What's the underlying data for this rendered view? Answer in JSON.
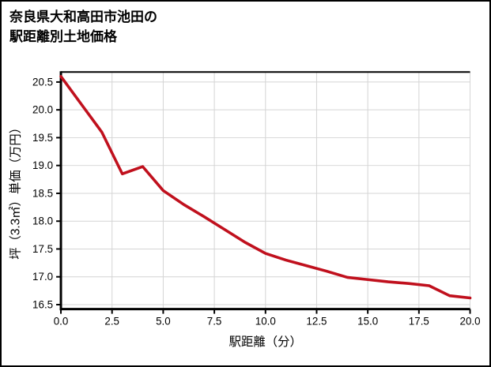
{
  "window": {
    "background": "#ffffff",
    "border_color": "#000000"
  },
  "title": {
    "line1": "奈良県大和高田市池田の",
    "line2": "駅距離別土地価格"
  },
  "chart_data": {
    "type": "line",
    "title": "奈良県大和高田市池田の駅距離別土地価格",
    "xlabel": "駅距離（分）",
    "ylabel": "坪（3.3㎡）単価（万円）",
    "series": [
      {
        "name": "坪単価",
        "color": "#c0101d",
        "x": [
          0,
          1,
          2,
          3,
          4,
          5,
          6,
          7,
          8,
          9,
          10,
          11,
          12,
          13,
          14,
          15,
          16,
          17,
          18,
          19,
          20
        ],
        "y": [
          20.6,
          20.1,
          19.6,
          18.85,
          18.98,
          18.55,
          18.3,
          18.08,
          17.85,
          17.62,
          17.42,
          17.3,
          17.2,
          17.1,
          16.99,
          16.95,
          16.91,
          16.88,
          16.84,
          16.66,
          16.62
        ]
      }
    ],
    "xlim": [
      0,
      20
    ],
    "ylim": [
      16.42,
      20.68
    ],
    "x_ticks": [
      "0.0",
      "2.5",
      "5.0",
      "7.5",
      "10.0",
      "12.5",
      "15.0",
      "17.5",
      "20.0"
    ],
    "y_ticks": [
      "16.5",
      "17.0",
      "17.5",
      "18.0",
      "18.5",
      "19.0",
      "19.5",
      "20.0",
      "20.5"
    ],
    "grid": true,
    "grid_color": "#d4d4d4",
    "axis_color": "#000000",
    "tick_label_color": "#000000",
    "legend": "none"
  }
}
